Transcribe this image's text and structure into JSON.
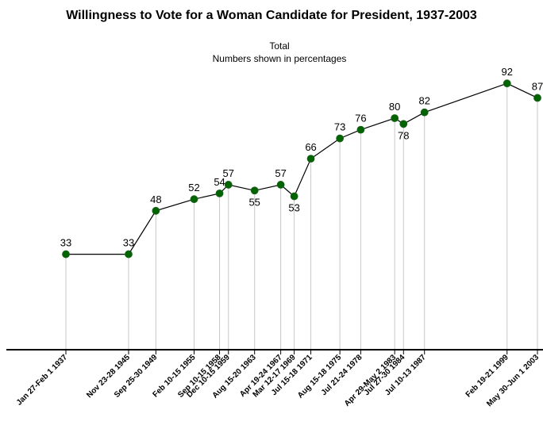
{
  "chart_data": {
    "type": "line",
    "title": "Willingness to Vote for a Woman Candidate for President, 1937-2003",
    "subtitle_lines": [
      "Total",
      "Numbers shown in percentages"
    ],
    "xlabel": "",
    "ylabel": "",
    "ylim": [
      0,
      100
    ],
    "grid": false,
    "legend": "none",
    "colors": {
      "point": "#006400",
      "line": "#000000",
      "drop_line": "#c8c8c8"
    },
    "categories": [
      "Jan 27-Feb 1 1937",
      "Nov 23-28 1945",
      "Sep 25-30 1949",
      "Feb 10-15 1955",
      "Sep 10-15 1958",
      "Dec 10-15 1959",
      "Aug 15-20 1963",
      "Apr 19-24 1967",
      "Mar 12-17 1969",
      "Jul 15-18 1971",
      "Aug 15-18 1975",
      "Jul 21-24 1978",
      "Apr 29-May 2 1983",
      "Jul 27-30 1984",
      "Jul 10-13 1987",
      "Feb 19-21 1999",
      "May 30-Jun 1 2003"
    ],
    "dates": [
      "1937-01-30",
      "1945-11-25",
      "1949-09-27",
      "1955-02-12",
      "1958-09-12",
      "1959-12-12",
      "1963-08-17",
      "1967-04-21",
      "1969-03-14",
      "1971-07-16",
      "1975-08-16",
      "1978-07-22",
      "1983-05-01",
      "1984-07-28",
      "1987-07-11",
      "1999-02-20",
      "2003-05-31"
    ],
    "values": [
      33,
      33,
      48,
      52,
      54,
      57,
      55,
      57,
      53,
      66,
      73,
      76,
      80,
      78,
      82,
      92,
      87
    ],
    "value_labels": [
      "33",
      "33",
      "48",
      "52",
      "54",
      "57",
      "55",
      "57",
      "53",
      "66",
      "73",
      "76",
      "80",
      "78",
      "82",
      "92",
      "87"
    ]
  }
}
